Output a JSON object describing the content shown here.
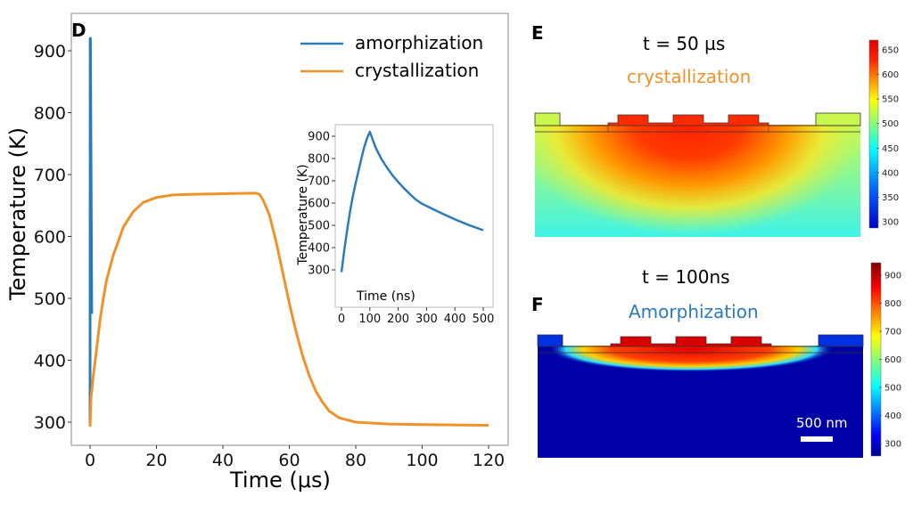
{
  "panels": {
    "D": {
      "letter": "D"
    },
    "E": {
      "letter": "E",
      "time_label": "t = 50 µs",
      "process_label": "crystallization",
      "process_color": "#f0922a"
    },
    "F": {
      "letter": "F",
      "time_label": "t = 100ns",
      "process_label": "Amorphization",
      "process_color": "#2b7bb9",
      "scale_bar_label": "500 nm"
    }
  },
  "chart_data": [
    {
      "type": "line",
      "xlabel": "Time (μs)",
      "ylabel": "Temperature (K)",
      "xlim": [
        -5,
        125
      ],
      "ylim": [
        265,
        945
      ],
      "xticks": [
        0,
        20,
        40,
        60,
        80,
        100,
        120
      ],
      "yticks": [
        300,
        400,
        500,
        600,
        700,
        800,
        900
      ],
      "grid": false,
      "legend": "top-right",
      "series": [
        {
          "name": "amorphization",
          "color": "#2b7bb9",
          "points": [
            [
              0,
              293
            ],
            [
              0.05,
              920
            ],
            [
              0.1,
              920
            ],
            [
              0.5,
              475
            ]
          ]
        },
        {
          "name": "crystallization",
          "color": "#f0922a",
          "points": [
            [
              0,
              293
            ],
            [
              0.3,
              340
            ],
            [
              1,
              375
            ],
            [
              2,
              420
            ],
            [
              3,
              465
            ],
            [
              4,
              500
            ],
            [
              5,
              530
            ],
            [
              7,
              570
            ],
            [
              10,
              615
            ],
            [
              13,
              640
            ],
            [
              16,
              655
            ],
            [
              20,
              663
            ],
            [
              25,
              667
            ],
            [
              30,
              668
            ],
            [
              40,
              669
            ],
            [
              50,
              670
            ],
            [
              51,
              668
            ],
            [
              52,
              660
            ],
            [
              54,
              635
            ],
            [
              56,
              592
            ],
            [
              58,
              542
            ],
            [
              60,
              492
            ],
            [
              62,
              447
            ],
            [
              64,
              407
            ],
            [
              66,
              375
            ],
            [
              68,
              350
            ],
            [
              70,
              332
            ],
            [
              72,
              318
            ],
            [
              75,
              307
            ],
            [
              80,
              300
            ],
            [
              90,
              297
            ],
            [
              100,
              296
            ],
            [
              120,
              295
            ]
          ]
        }
      ]
    },
    {
      "type": "line",
      "xlabel": "Time (ns)",
      "ylabel": "Temperature (K)",
      "xlim": [
        -25,
        525
      ],
      "ylim": [
        265,
        945
      ],
      "xticks": [
        0,
        100,
        200,
        300,
        400,
        500
      ],
      "yticks": [
        300,
        400,
        500,
        600,
        700,
        800,
        900
      ],
      "grid": false,
      "series": [
        {
          "color": "#2b7bb9",
          "points": [
            [
              0,
              290
            ],
            [
              10,
              390
            ],
            [
              20,
              480
            ],
            [
              30,
              560
            ],
            [
              40,
              630
            ],
            [
              50,
              690
            ],
            [
              60,
              745
            ],
            [
              70,
              800
            ],
            [
              80,
              850
            ],
            [
              90,
              890
            ],
            [
              100,
              920
            ],
            [
              120,
              850
            ],
            [
              140,
              800
            ],
            [
              160,
              760
            ],
            [
              180,
              725
            ],
            [
              200,
              695
            ],
            [
              220,
              667
            ],
            [
              240,
              642
            ],
            [
              260,
              618
            ],
            [
              280,
              600
            ],
            [
              300,
              587
            ],
            [
              350,
              556
            ],
            [
              400,
              527
            ],
            [
              450,
              501
            ],
            [
              500,
              478
            ]
          ]
        }
      ]
    },
    {
      "type": "heatmap",
      "colorbar_ticks": [
        300,
        350,
        400,
        450,
        500,
        550,
        600,
        650
      ],
      "colorbar_range": [
        295,
        670
      ],
      "colormap": "jet"
    },
    {
      "type": "heatmap",
      "colorbar_ticks": [
        300,
        400,
        500,
        600,
        700,
        800,
        900
      ],
      "colorbar_range": [
        290,
        940
      ],
      "colormap": "jet"
    }
  ]
}
